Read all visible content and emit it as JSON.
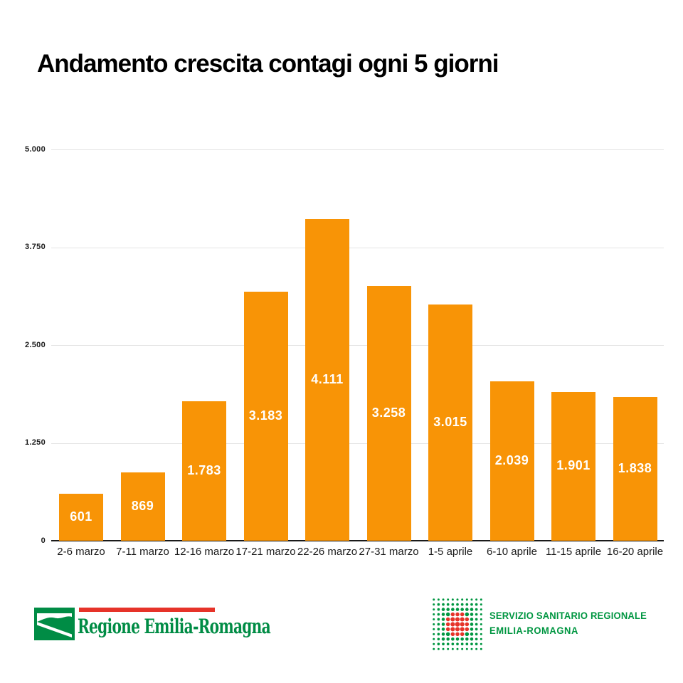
{
  "title": "Andamento crescita contagi ogni 5 giorni",
  "chart_data": {
    "type": "bar",
    "title": "Andamento crescita contagi ogni 5 giorni",
    "categories": [
      "2-6 marzo",
      "7-11 marzo",
      "12-16 marzo",
      "17-21 marzo",
      "22-26 marzo",
      "27-31 marzo",
      "1-5 aprile",
      "6-10 aprile",
      "11-15 aprile",
      "16-20 aprile"
    ],
    "values": [
      601,
      869,
      1783,
      3183,
      4111,
      3258,
      3015,
      2039,
      1901,
      1838
    ],
    "value_labels": [
      "601",
      "869",
      "1.783",
      "3.183",
      "4.111",
      "3.258",
      "3.015",
      "2.039",
      "1.901",
      "1.838"
    ],
    "xlabel": "",
    "ylabel": "",
    "ylim": [
      0,
      5000
    ],
    "yticks": [
      {
        "value": 0,
        "label": "0"
      },
      {
        "value": 1250,
        "label": "1.250"
      },
      {
        "value": 2500,
        "label": "2.500"
      },
      {
        "value": 3750,
        "label": "3.750"
      },
      {
        "value": 5000,
        "label": "5.000"
      }
    ],
    "grid": true,
    "legend_position": "none",
    "bar_color": "#F89406"
  },
  "footer": {
    "regione": {
      "wordmark": "Regione Emilia-Romagna"
    },
    "ssr": {
      "line1": "SERVIZIO SANITARIO REGIONALE",
      "line2": "EMILIA-ROMAGNA"
    }
  },
  "icons": {
    "regione_mark": "green-square-white-wave-icon",
    "ssr_mark": "green-dot-grid-red-cross-icon"
  },
  "colors": {
    "bar": "#F89406",
    "grid_line": "#E4E4E4",
    "axis_line": "#1A1A1A",
    "title_text": "#000000",
    "value_text": "#FFFFFF",
    "er_green": "#008C45",
    "er_red": "#E63329",
    "ssr_green": "#009641",
    "ssr_red": "#E63329"
  }
}
